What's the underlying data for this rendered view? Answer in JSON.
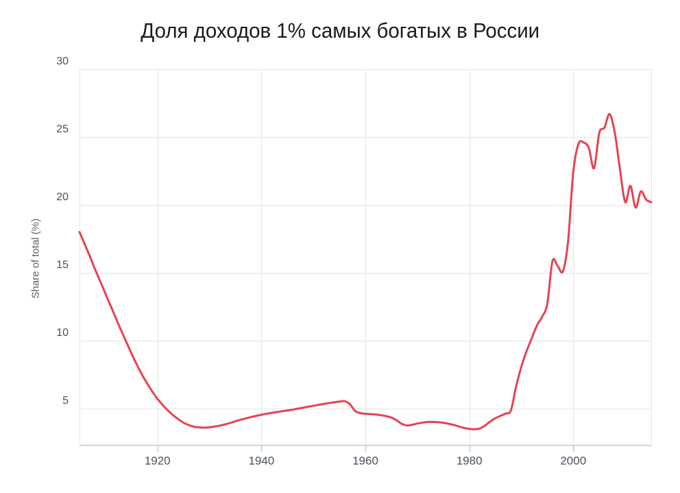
{
  "title": "Доля доходов 1% самых богатых в России",
  "colors": {
    "line": "#e8414f",
    "grid": "#e6e6dc",
    "axis_line": "#c8d4e5",
    "tick_label": "#47515c",
    "axis_title": "#565f68",
    "title": "#1b1b1b",
    "background": "#ffffff"
  },
  "chart_data": {
    "type": "line",
    "title": "Доля доходов 1% самых богатых в России",
    "xlabel": "",
    "ylabel": "Share of total (%)",
    "xlim": [
      1905,
      2015
    ],
    "ylim": [
      2.3,
      30
    ],
    "x_ticks": [
      1920,
      1940,
      1960,
      1980,
      2000
    ],
    "y_ticks": [
      5,
      10,
      15,
      20,
      25,
      30
    ],
    "grid": true,
    "legend": false,
    "x": [
      1905,
      1906,
      1907,
      1908,
      1909,
      1910,
      1911,
      1912,
      1913,
      1914,
      1915,
      1916,
      1917,
      1918,
      1919,
      1920,
      1921,
      1922,
      1923,
      1924,
      1925,
      1926,
      1927,
      1928,
      1929,
      1930,
      1931,
      1932,
      1933,
      1934,
      1935,
      1936,
      1937,
      1938,
      1939,
      1940,
      1941,
      1942,
      1943,
      1944,
      1945,
      1946,
      1947,
      1948,
      1949,
      1950,
      1951,
      1952,
      1953,
      1954,
      1955,
      1956,
      1957,
      1958,
      1959,
      1960,
      1961,
      1962,
      1963,
      1964,
      1965,
      1966,
      1967,
      1968,
      1969,
      1970,
      1971,
      1972,
      1973,
      1974,
      1975,
      1976,
      1977,
      1978,
      1979,
      1980,
      1981,
      1982,
      1983,
      1984,
      1985,
      1986,
      1987,
      1988,
      1989,
      1990,
      1991,
      1992,
      1993,
      1994,
      1995,
      1996,
      1997,
      1998,
      1999,
      2000,
      2001,
      2002,
      2003,
      2004,
      2005,
      2006,
      2007,
      2008,
      2009,
      2010,
      2011,
      2012,
      2013,
      2014,
      2015
    ],
    "values": [
      18.0,
      17.1,
      16.2,
      15.25,
      14.35,
      13.45,
      12.55,
      11.65,
      10.75,
      9.9,
      9.05,
      8.25,
      7.5,
      6.85,
      6.25,
      5.7,
      5.25,
      4.85,
      4.5,
      4.2,
      3.95,
      3.77,
      3.65,
      3.6,
      3.58,
      3.6,
      3.66,
      3.73,
      3.82,
      3.93,
      4.05,
      4.16,
      4.26,
      4.36,
      4.45,
      4.53,
      4.6,
      4.67,
      4.73,
      4.79,
      4.85,
      4.91,
      4.98,
      5.05,
      5.12,
      5.19,
      5.26,
      5.33,
      5.39,
      5.45,
      5.5,
      5.53,
      5.32,
      4.82,
      4.65,
      4.6,
      4.58,
      4.55,
      4.5,
      4.43,
      4.32,
      4.12,
      3.86,
      3.74,
      3.79,
      3.88,
      3.95,
      4.0,
      4.0,
      3.98,
      3.94,
      3.87,
      3.78,
      3.67,
      3.56,
      3.49,
      3.46,
      3.52,
      3.73,
      4.03,
      4.27,
      4.45,
      4.62,
      4.85,
      6.6,
      8.05,
      9.2,
      10.15,
      11.1,
      11.75,
      12.7,
      15.85,
      15.5,
      15.1,
      17.3,
      22.4,
      24.5,
      24.6,
      24.2,
      22.7,
      25.3,
      25.7,
      26.7,
      25.3,
      22.6,
      20.2,
      21.4,
      19.8,
      21.0,
      20.4,
      20.2
    ]
  }
}
